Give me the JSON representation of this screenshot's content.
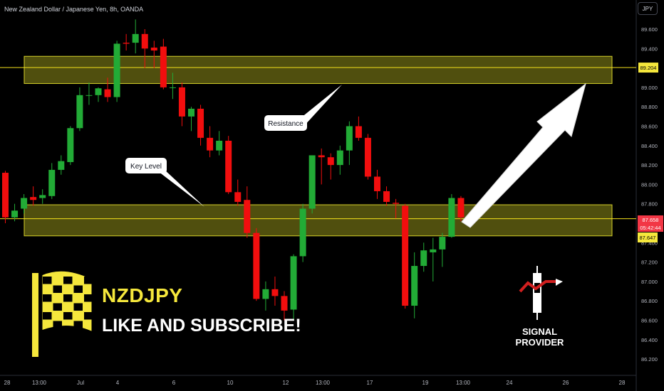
{
  "header": {
    "symbol_title": "New Zealand Dollar / Japanese Yen, 8h, OANDA",
    "currency_button": "JPY"
  },
  "promo": {
    "symbol": "NZDJPY",
    "cta": "LIKE AND SUBSCRIBE!"
  },
  "brand": {
    "name": "SIGNAL PROVIDER"
  },
  "colors": {
    "up": "#22ab36",
    "down": "#f20e0e",
    "zone_fill": "#6b6a13",
    "zone_border": "#d6d12a",
    "line": "#f5e11c",
    "accent_yellow": "#f5e73c",
    "arrow": "#ffffff"
  },
  "chart_data": {
    "type": "candlestick",
    "y_axis": {
      "ticks": [
        89.6,
        89.4,
        89.2,
        89.0,
        88.8,
        88.6,
        88.4,
        88.2,
        88.0,
        87.8,
        87.6,
        87.4,
        87.2,
        87.0,
        86.8,
        86.6,
        86.4,
        86.2
      ],
      "ylim": [
        86.15,
        89.82
      ]
    },
    "x_axis": {
      "ticks": [
        "28",
        "13:00",
        "Jul",
        "4",
        "6",
        "10",
        "12",
        "13:00",
        "17",
        "19",
        "13:00",
        "24",
        "26",
        "28"
      ]
    },
    "price_labels": {
      "upper_line": "89.204",
      "current_price": "87.658",
      "countdown": "05:42:44",
      "lower_line": "87.647"
    },
    "horizontal_lines": [
      89.204,
      87.647
    ],
    "zones": [
      {
        "name": "Resistance",
        "low": 89.04,
        "high": 89.32
      },
      {
        "name": "Key Level",
        "low": 87.47,
        "high": 87.79
      }
    ],
    "annotations": [
      "Resistance",
      "Key Level"
    ],
    "candles": [
      {
        "o": 88.12,
        "h": 88.14,
        "l": 87.6,
        "c": 87.66
      },
      {
        "o": 87.66,
        "h": 87.8,
        "l": 87.62,
        "c": 87.73
      },
      {
        "o": 87.75,
        "h": 87.9,
        "l": 87.7,
        "c": 87.86
      },
      {
        "o": 87.87,
        "h": 87.98,
        "l": 87.78,
        "c": 87.84
      },
      {
        "o": 87.86,
        "h": 87.95,
        "l": 87.8,
        "c": 87.89
      },
      {
        "o": 87.88,
        "h": 88.22,
        "l": 87.85,
        "c": 88.15
      },
      {
        "o": 88.15,
        "h": 88.3,
        "l": 88.1,
        "c": 88.24
      },
      {
        "o": 88.23,
        "h": 88.6,
        "l": 88.2,
        "c": 88.58
      },
      {
        "o": 88.58,
        "h": 89.0,
        "l": 88.55,
        "c": 88.92
      },
      {
        "o": 88.92,
        "h": 89.05,
        "l": 88.82,
        "c": 88.92
      },
      {
        "o": 88.92,
        "h": 89.0,
        "l": 88.85,
        "c": 88.99
      },
      {
        "o": 88.98,
        "h": 89.1,
        "l": 88.85,
        "c": 88.9
      },
      {
        "o": 88.9,
        "h": 89.48,
        "l": 88.85,
        "c": 89.45
      },
      {
        "o": 89.46,
        "h": 89.55,
        "l": 89.38,
        "c": 89.45
      },
      {
        "o": 89.46,
        "h": 89.7,
        "l": 89.35,
        "c": 89.55
      },
      {
        "o": 89.55,
        "h": 89.6,
        "l": 89.2,
        "c": 89.4
      },
      {
        "o": 89.41,
        "h": 89.48,
        "l": 89.2,
        "c": 89.38
      },
      {
        "o": 89.42,
        "h": 89.5,
        "l": 88.98,
        "c": 89.0
      },
      {
        "o": 89.0,
        "h": 89.15,
        "l": 88.88,
        "c": 89.0
      },
      {
        "o": 89.0,
        "h": 89.05,
        "l": 88.6,
        "c": 88.7
      },
      {
        "o": 88.7,
        "h": 88.8,
        "l": 88.55,
        "c": 88.78
      },
      {
        "o": 88.78,
        "h": 88.82,
        "l": 88.4,
        "c": 88.48
      },
      {
        "o": 88.48,
        "h": 88.6,
        "l": 88.28,
        "c": 88.35
      },
      {
        "o": 88.35,
        "h": 88.55,
        "l": 88.3,
        "c": 88.45
      },
      {
        "o": 88.45,
        "h": 88.5,
        "l": 87.9,
        "c": 87.92
      },
      {
        "o": 87.92,
        "h": 88.05,
        "l": 87.78,
        "c": 87.82
      },
      {
        "o": 87.84,
        "h": 87.98,
        "l": 87.45,
        "c": 87.5
      },
      {
        "o": 87.5,
        "h": 87.55,
        "l": 86.8,
        "c": 86.82
      },
      {
        "o": 86.82,
        "h": 87.0,
        "l": 86.7,
        "c": 86.92
      },
      {
        "o": 86.92,
        "h": 87.05,
        "l": 86.75,
        "c": 86.85
      },
      {
        "o": 86.85,
        "h": 86.9,
        "l": 86.6,
        "c": 86.7
      },
      {
        "o": 86.71,
        "h": 87.28,
        "l": 86.6,
        "c": 87.26
      },
      {
        "o": 87.26,
        "h": 87.8,
        "l": 87.2,
        "c": 87.75
      },
      {
        "o": 87.75,
        "h": 88.3,
        "l": 87.7,
        "c": 88.3
      },
      {
        "o": 88.3,
        "h": 88.37,
        "l": 88.0,
        "c": 88.28
      },
      {
        "o": 88.28,
        "h": 88.32,
        "l": 88.05,
        "c": 88.2
      },
      {
        "o": 88.2,
        "h": 88.4,
        "l": 88.1,
        "c": 88.35
      },
      {
        "o": 88.35,
        "h": 88.65,
        "l": 88.2,
        "c": 88.6
      },
      {
        "o": 88.6,
        "h": 88.7,
        "l": 88.45,
        "c": 88.48
      },
      {
        "o": 88.48,
        "h": 88.52,
        "l": 88.05,
        "c": 88.08
      },
      {
        "o": 88.08,
        "h": 88.15,
        "l": 87.85,
        "c": 87.93
      },
      {
        "o": 87.93,
        "h": 87.98,
        "l": 87.78,
        "c": 87.82
      },
      {
        "o": 87.81,
        "h": 87.85,
        "l": 87.65,
        "c": 87.8
      },
      {
        "o": 87.78,
        "h": 87.8,
        "l": 86.72,
        "c": 86.75
      },
      {
        "o": 86.75,
        "h": 87.3,
        "l": 86.62,
        "c": 87.16
      },
      {
        "o": 87.16,
        "h": 87.4,
        "l": 87.1,
        "c": 87.32
      },
      {
        "o": 87.3,
        "h": 87.45,
        "l": 87.0,
        "c": 87.33
      },
      {
        "o": 87.33,
        "h": 87.5,
        "l": 87.15,
        "c": 87.46
      },
      {
        "o": 87.46,
        "h": 87.9,
        "l": 87.45,
        "c": 87.86
      },
      {
        "o": 87.86,
        "h": 87.88,
        "l": 87.62,
        "c": 87.66
      }
    ]
  }
}
